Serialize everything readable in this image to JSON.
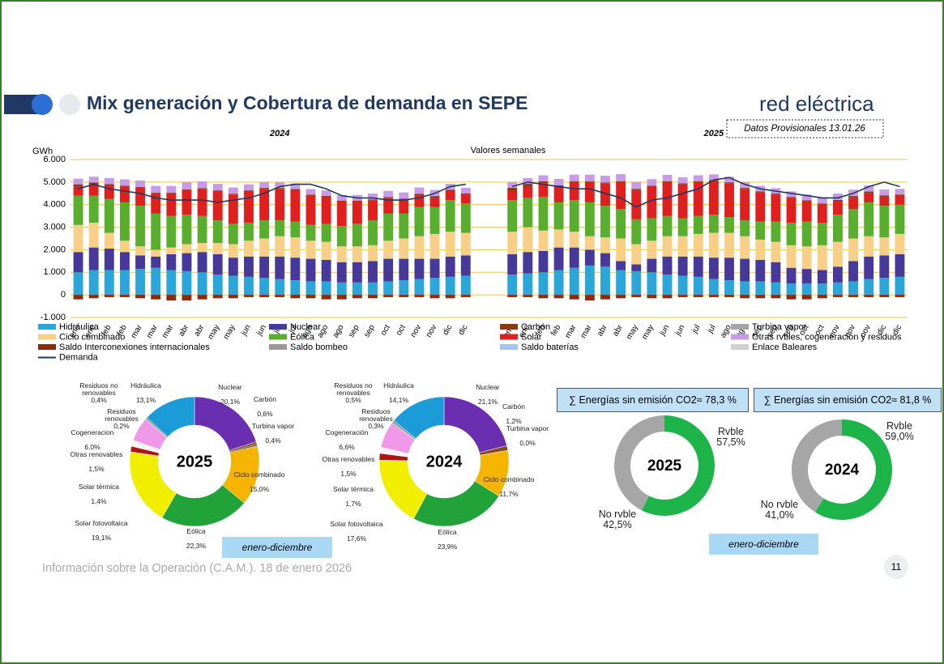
{
  "header": {
    "title": "Mix generación y Cobertura de demanda en SEPE",
    "brand": "red eléctrica",
    "note": "Datos Provisionales 13.01.26"
  },
  "footer": {
    "source": "Información sobre la Operación (C.A.M.). 18 de enero 2026",
    "page": "11"
  },
  "period_labels": [
    "enero-diciembre",
    "enero-diciembre"
  ],
  "chart_data": [
    {
      "type": "bar",
      "stacked": true,
      "subtitle": "Valores semanales",
      "y_label": "GWh",
      "groups": [
        "2024",
        "2025"
      ],
      "categories": [
        "ene",
        "ene",
        "feb",
        "feb",
        "mar",
        "mar",
        "mar",
        "abr",
        "abr",
        "may",
        "may",
        "jun",
        "jun",
        "jul",
        "jul",
        "ago",
        "ago",
        "ago",
        "sep",
        "sep",
        "oct",
        "oct",
        "nov",
        "nov",
        "dic",
        "dic",
        "ene",
        "ene",
        "feb",
        "feb",
        "mar",
        "mar",
        "abr",
        "abr",
        "may",
        "may",
        "jun",
        "jun",
        "jul",
        "jul",
        "ago",
        "ago",
        "sep",
        "sep",
        "sep",
        "oct",
        "oct",
        "nov",
        "nov",
        "nov",
        "dic",
        "dic"
      ],
      "ylim": [
        -1000,
        6000
      ],
      "yticks": [
        {
          "value": -1000,
          "label": "-1.000"
        },
        0,
        {
          "value": 1000,
          "label": "1.000"
        },
        {
          "value": 2000,
          "label": "2.000"
        },
        {
          "value": 3000,
          "label": "3.000"
        },
        {
          "value": 4000,
          "label": "4.000"
        },
        {
          "value": 5000,
          "label": "5.000"
        },
        {
          "value": 6000,
          "label": "6.000"
        }
      ],
      "grid": true,
      "series": [
        {
          "name": "Hidráulica",
          "color": "#2aa7d8",
          "values": [
            1000,
            1100,
            1100,
            1100,
            1150,
            1200,
            1100,
            1050,
            1000,
            900,
            850,
            800,
            750,
            700,
            650,
            600,
            600,
            550,
            550,
            550,
            600,
            650,
            700,
            750,
            800,
            850,
            900,
            950,
            1000,
            1100,
            1200,
            1300,
            1250,
            1100,
            1050,
            1000,
            900,
            850,
            800,
            700,
            650,
            600,
            600,
            550,
            500,
            500,
            500,
            550,
            600,
            700,
            750,
            800
          ]
        },
        {
          "name": "Nuclear",
          "color": "#46399a",
          "values": [
            900,
            1000,
            950,
            800,
            600,
            500,
            700,
            800,
            900,
            900,
            800,
            900,
            950,
            1000,
            1000,
            1000,
            950,
            900,
            900,
            950,
            1000,
            950,
            900,
            850,
            900,
            900,
            900,
            950,
            950,
            1000,
            900,
            700,
            600,
            400,
            300,
            600,
            800,
            850,
            900,
            950,
            1000,
            1000,
            950,
            900,
            700,
            650,
            600,
            700,
            900,
            1000,
            1000,
            1000
          ]
        },
        {
          "name": "Carbón",
          "color": "#8b3a12",
          "values": [
            100,
            80,
            60,
            40,
            30,
            30,
            30,
            30,
            30,
            30,
            30,
            30,
            40,
            40,
            40,
            40,
            40,
            30,
            30,
            30,
            40,
            60,
            80,
            80,
            60,
            50,
            150,
            120,
            80,
            60,
            40,
            30,
            30,
            40,
            50,
            40,
            40,
            40,
            40,
            40,
            40,
            40,
            40,
            40,
            40,
            40,
            50,
            60,
            80,
            80,
            60,
            50
          ]
        },
        {
          "name": "Turbina vapor",
          "color": "#a6a6a6",
          "values": [
            0,
            0,
            0,
            0,
            0,
            0,
            0,
            0,
            0,
            0,
            0,
            0,
            0,
            0,
            0,
            0,
            0,
            0,
            0,
            0,
            0,
            0,
            0,
            0,
            0,
            0,
            0,
            0,
            0,
            0,
            0,
            0,
            0,
            0,
            0,
            0,
            0,
            0,
            0,
            0,
            0,
            0,
            0,
            0,
            0,
            0,
            0,
            0,
            0,
            0,
            0,
            0
          ]
        },
        {
          "name": "Ciclo combinado",
          "color": "#f8cf86",
          "values": [
            1200,
            1100,
            700,
            500,
            400,
            300,
            300,
            400,
            400,
            500,
            600,
            700,
            800,
            900,
            900,
            800,
            800,
            700,
            700,
            700,
            800,
            900,
            1000,
            1100,
            1100,
            1000,
            1000,
            1100,
            900,
            800,
            700,
            600,
            700,
            1000,
            900,
            800,
            900,
            900,
            1000,
            1100,
            1100,
            1000,
            900,
            900,
            1000,
            1000,
            1100,
            1100,
            1000,
            900,
            800,
            900
          ]
        },
        {
          "name": "Eólica",
          "color": "#5aae2e",
          "values": [
            1300,
            1200,
            1500,
            1700,
            1800,
            1600,
            1400,
            1300,
            1200,
            1000,
            900,
            800,
            800,
            700,
            700,
            700,
            800,
            900,
            1000,
            1100,
            1200,
            1100,
            1300,
            1200,
            1400,
            1300,
            1400,
            1300,
            1500,
            1200,
            1400,
            1500,
            1400,
            1300,
            1100,
            1000,
            900,
            800,
            800,
            800,
            700,
            700,
            800,
            900,
            1000,
            1100,
            1000,
            1200,
            1300,
            1500,
            1400,
            1300
          ]
        },
        {
          "name": "Solar",
          "color": "#e0201e",
          "values": [
            400,
            500,
            600,
            700,
            800,
            900,
            1000,
            1100,
            1200,
            1300,
            1300,
            1400,
            1400,
            1400,
            1400,
            1300,
            1200,
            1100,
            1000,
            900,
            700,
            600,
            500,
            400,
            400,
            400,
            400,
            500,
            600,
            700,
            800,
            900,
            1000,
            1200,
            1300,
            1400,
            1500,
            1500,
            1500,
            1500,
            1500,
            1400,
            1300,
            1200,
            1100,
            900,
            800,
            600,
            500,
            400,
            400,
            400
          ]
        },
        {
          "name": "Otras rvbles, cogeneración y residuos",
          "color": "#c79be8",
          "values": [
            250,
            260,
            270,
            280,
            290,
            300,
            300,
            310,
            300,
            290,
            280,
            270,
            260,
            250,
            250,
            250,
            240,
            240,
            250,
            260,
            270,
            280,
            280,
            270,
            260,
            250,
            250,
            260,
            270,
            280,
            290,
            300,
            300,
            310,
            300,
            290,
            280,
            270,
            260,
            250,
            250,
            250,
            240,
            240,
            250,
            260,
            270,
            280,
            280,
            270,
            260,
            250
          ]
        },
        {
          "name": "Saldo Interconexiones internacionales",
          "color": "#8b2b0c",
          "values": [
            -200,
            -150,
            -100,
            -100,
            -150,
            -200,
            -250,
            -250,
            -200,
            -150,
            -150,
            -100,
            -100,
            -100,
            -150,
            -150,
            -200,
            -200,
            -150,
            -150,
            -100,
            -100,
            -100,
            -150,
            -150,
            -100,
            -100,
            -100,
            -150,
            -150,
            -200,
            -250,
            -200,
            -150,
            -100,
            -150,
            -150,
            -100,
            -100,
            -100,
            -100,
            -150,
            -150,
            -150,
            -200,
            -200,
            -150,
            -100,
            -100,
            -100,
            -100,
            -100
          ]
        },
        {
          "name": "Saldo bombeo",
          "color": "#999999",
          "values": [
            0,
            0,
            0,
            0,
            0,
            0,
            0,
            0,
            0,
            0,
            0,
            0,
            0,
            0,
            0,
            0,
            0,
            0,
            0,
            0,
            0,
            0,
            0,
            0,
            0,
            0,
            0,
            0,
            0,
            0,
            0,
            0,
            0,
            0,
            0,
            0,
            0,
            0,
            0,
            0,
            0,
            0,
            0,
            0,
            0,
            0,
            0,
            0,
            0,
            0,
            0,
            0
          ]
        },
        {
          "name": "Saldo baterías",
          "color": "#9fc5f0",
          "values": [
            0,
            0,
            0,
            0,
            0,
            0,
            0,
            0,
            0,
            0,
            0,
            0,
            0,
            0,
            0,
            0,
            0,
            0,
            0,
            0,
            0,
            0,
            0,
            0,
            0,
            0,
            0,
            0,
            0,
            0,
            0,
            0,
            0,
            0,
            0,
            0,
            0,
            0,
            0,
            0,
            0,
            0,
            0,
            0,
            0,
            0,
            0,
            0,
            0,
            0,
            0,
            0
          ]
        },
        {
          "name": "Enlace Baleares",
          "color": "#d0d0d0",
          "values": [
            0,
            0,
            0,
            0,
            0,
            0,
            0,
            0,
            0,
            0,
            0,
            0,
            0,
            0,
            0,
            0,
            0,
            0,
            0,
            0,
            0,
            0,
            0,
            0,
            0,
            0,
            0,
            0,
            0,
            0,
            0,
            0,
            0,
            0,
            0,
            0,
            0,
            0,
            0,
            0,
            0,
            0,
            0,
            0,
            0,
            0,
            0,
            0,
            0,
            0,
            0,
            0
          ]
        },
        {
          "name": "Demanda",
          "color": "#1f3864",
          "type": "line",
          "values": [
            4700,
            4900,
            4700,
            4600,
            4500,
            4300,
            4200,
            4200,
            4200,
            4100,
            4200,
            4300,
            4500,
            4800,
            4900,
            4900,
            4700,
            4400,
            4300,
            4300,
            4200,
            4200,
            4300,
            4500,
            4800,
            4900,
            4800,
            5000,
            4900,
            4800,
            4700,
            4700,
            4500,
            4300,
            3900,
            4200,
            4300,
            4500,
            4700,
            5100,
            5200,
            4900,
            4700,
            4600,
            4500,
            4400,
            4300,
            4300,
            4500,
            4800,
            5000,
            4800
          ]
        }
      ]
    },
    {
      "type": "pie",
      "donut": true,
      "title": "2025",
      "categories": [
        "Nuclear",
        "Carbón",
        "Turbina vapor",
        "Ciclo combinado",
        "Eólica",
        "Solar fotovoltaica",
        "Solar térmica",
        "Otras renovables",
        "Cogeneracion",
        "Residuos renovables",
        "Residuos no renovables",
        "Hidráulica"
      ],
      "values": [
        20.1,
        0.6,
        0.4,
        15.0,
        22.3,
        19.1,
        1.4,
        1.5,
        6.0,
        0.2,
        0.4,
        13.1
      ],
      "value_labels": [
        "20,1%",
        "0,6%",
        "0,4%",
        "15,0%",
        "22,3%",
        "19,1%",
        "1,4%",
        "1,5%",
        "6,0%",
        "0,2%",
        "0,4%",
        "13,1%"
      ],
      "colors": [
        "#6a2fb0",
        "#8a4a1a",
        "#404040",
        "#f5b400",
        "#22a33a",
        "#f2ee00",
        "#b01515",
        "#f4f4f4",
        "#f098e8",
        "#6f9fb8",
        "#888888",
        "#1b9bd7"
      ]
    },
    {
      "type": "pie",
      "donut": true,
      "title": "2024",
      "categories": [
        "Nuclear",
        "Carbón",
        "Turbina vapor",
        "Ciclo combinado",
        "Eólica",
        "Solar fotovoltaica",
        "Solar térmica",
        "Otras renovables",
        "Cogeneración",
        "Residuos renovables",
        "Residuos no renovables",
        "Hidráulica"
      ],
      "values": [
        21.1,
        1.2,
        0.0,
        11.7,
        23.9,
        17.6,
        1.7,
        1.5,
        6.6,
        0.3,
        0.5,
        14.1
      ],
      "value_labels": [
        "21,1%",
        "1,2%",
        "0,0%",
        "11,7%",
        "23,9%",
        "17,6%",
        "1,7%",
        "1,5%",
        "6,6%",
        "0,3%",
        "0,5%",
        "14,1%"
      ],
      "colors": [
        "#6a2fb0",
        "#8a4a1a",
        "#404040",
        "#f5b400",
        "#22a33a",
        "#f2ee00",
        "#b01515",
        "#f4f4f4",
        "#f098e8",
        "#6f9fb8",
        "#888888",
        "#1b9bd7"
      ]
    },
    {
      "type": "pie",
      "donut": true,
      "title": "2025",
      "summary": "∑ Energías sin emisión CO2≈ 78,3 %",
      "categories": [
        "Rvble",
        "No rvble"
      ],
      "values": [
        57.5,
        42.5
      ],
      "value_labels": [
        "57,5%",
        "42,5%"
      ],
      "colors": [
        "#1db44a",
        "#a6a6a6"
      ]
    },
    {
      "type": "pie",
      "donut": true,
      "title": "2024",
      "summary": "∑ Energías sin emisión CO2≈  81,8 %",
      "categories": [
        "Rvble",
        "No rvble"
      ],
      "values": [
        59.0,
        41.0
      ],
      "value_labels": [
        "59,0%",
        "41,0%"
      ],
      "colors": [
        "#1db44a",
        "#a6a6a6"
      ]
    }
  ]
}
